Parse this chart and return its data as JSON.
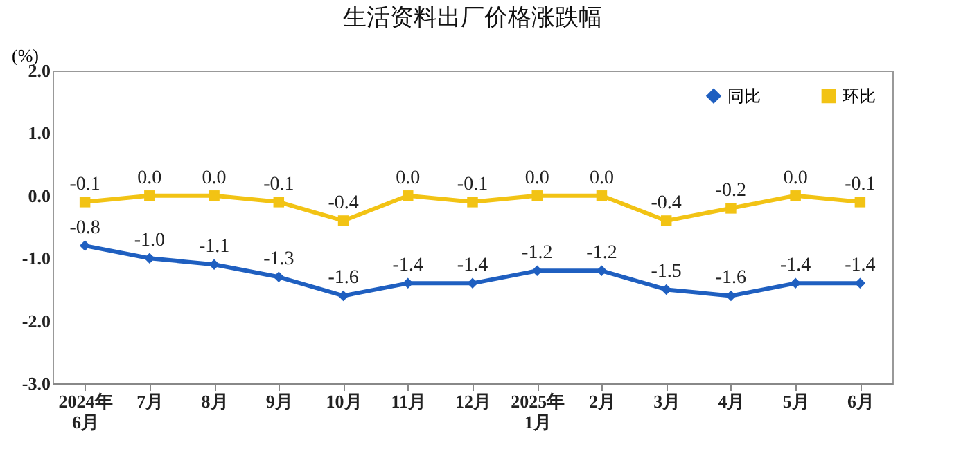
{
  "chart_data": {
    "type": "line",
    "title": "生活资料出厂价格涨跌幅",
    "ylabel": "(%)",
    "categories": [
      "2024年\n6月",
      "7月",
      "8月",
      "9月",
      "10月",
      "11月",
      "12月",
      "2025年\n1月",
      "2月",
      "3月",
      "4月",
      "5月",
      "6月"
    ],
    "series": [
      {
        "name": "同比",
        "color": "#1f5fc0",
        "marker": "diamond",
        "values": [
          -0.8,
          -1.0,
          -1.1,
          -1.3,
          -1.6,
          -1.4,
          -1.4,
          -1.2,
          -1.2,
          -1.5,
          -1.6,
          -1.4,
          -1.4
        ],
        "value_labels": [
          "-0.8",
          "-1.0",
          "-1.1",
          "-1.3",
          "-1.6",
          "-1.4",
          "-1.4",
          "-1.2",
          "-1.2",
          "-1.5",
          "-1.6",
          "-1.4",
          "-1.4"
        ]
      },
      {
        "name": "环比",
        "color": "#f2c314",
        "marker": "square",
        "values": [
          -0.1,
          0.0,
          0.0,
          -0.1,
          -0.4,
          0.0,
          -0.1,
          0.0,
          0.0,
          -0.4,
          -0.2,
          0.0,
          -0.1
        ],
        "value_labels": [
          "-0.1",
          "0.0",
          "0.0",
          "-0.1",
          "-0.4",
          "0.0",
          "-0.1",
          "0.0",
          "0.0",
          "-0.4",
          "-0.2",
          "0.0",
          "-0.1"
        ]
      }
    ],
    "ylim": [
      -3.0,
      2.0
    ],
    "yticks": [
      {
        "value": 2.0,
        "label": "2.0"
      },
      {
        "value": 1.0,
        "label": "1.0"
      },
      {
        "value": 0.0,
        "label": "0.0"
      },
      {
        "value": -1.0,
        "label": "-1.0"
      },
      {
        "value": -2.0,
        "label": "-2.0"
      },
      {
        "value": -3.0,
        "label": "-3.0"
      }
    ],
    "grid": false,
    "legend": "top right",
    "line_style": "solid"
  }
}
